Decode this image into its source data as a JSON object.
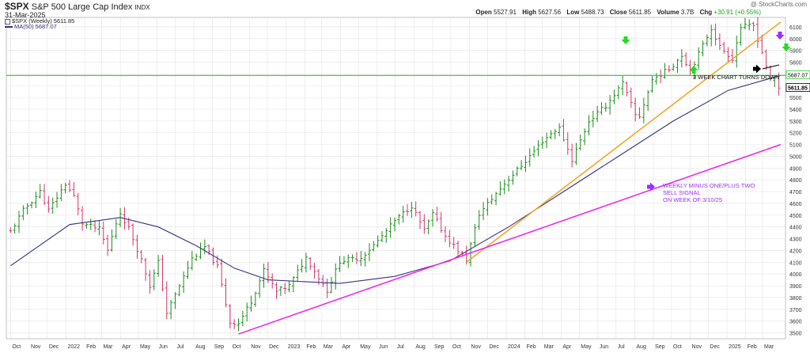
{
  "header": {
    "symbol": "$SPX",
    "name": "S&P 500 Large Cap Index",
    "exchange": "INDX",
    "date": "31-Mar-2025",
    "watermark": "@ StockCharts.com",
    "ohlc": {
      "open_label": "Open",
      "open": "5527.91",
      "high_label": "High",
      "high": "5627.56",
      "low_label": "Low",
      "low": "5488.73",
      "close_label": "Close",
      "close": "5611.85",
      "volume_label": "Volume",
      "volume": "3.7B",
      "chg_label": "Chg",
      "chg": "+30.91 (+0.55%)"
    },
    "legend_price": "$SPX (Weekly) 5611.85",
    "legend_ma": "MA(50) 5687.07"
  },
  "annotations": {
    "turns_down": "3 WEEK CHART TURNS DOWN",
    "sell_signal_lines": [
      "WEEKLY MINUS ONE/PLUS TWO",
      "SELL SIGNAL",
      "ON WEEK OF 3/10/25"
    ]
  },
  "colors": {
    "up_bar": "#1a8c1a",
    "down_bar": "#d6336c",
    "ma_line": "#333380",
    "horizontal_line": "#22cc22",
    "orange_trendline": "#f5a020",
    "magenta_trendline": "#ee22ee",
    "green_arrow": "#22dd22",
    "purple_arrow": "#9b30ff",
    "black_arrow": "#000000",
    "grid": "#e4e4e4"
  },
  "chart_data": {
    "type": "ohlc",
    "period": "weekly",
    "x_tick_labels": [
      "Oct",
      "Nov",
      "Dec",
      "2022",
      "Feb",
      "Mar",
      "Apr",
      "May",
      "Jun",
      "Jul",
      "Aug",
      "Sep",
      "Oct",
      "Nov",
      "Dec",
      "2023",
      "Feb",
      "Mar",
      "Apr",
      "May",
      "Jun",
      "Jul",
      "Aug",
      "Sep",
      "Oct",
      "Nov",
      "Dec",
      "2024",
      "Feb",
      "Mar",
      "Apr",
      "May",
      "Jun",
      "Jul",
      "Aug",
      "Sep",
      "Oct",
      "Nov",
      "Dec",
      "2025",
      "Feb",
      "Mar"
    ],
    "y_ticks": [
      3500,
      3600,
      3700,
      3800,
      3900,
      4000,
      4100,
      4200,
      4300,
      4400,
      4500,
      4600,
      4700,
      4800,
      4900,
      5000,
      5100,
      5200,
      5300,
      5400,
      5500,
      5600,
      5700,
      5800,
      5900,
      6000,
      6100
    ],
    "y_axis_tags": [
      "5687.07",
      "5611.85"
    ],
    "ylim": [
      3450,
      6180
    ],
    "grid": true,
    "axis_position": "right",
    "close_path": [
      [
        "2021-10-01",
        4360
      ],
      [
        "2021-10-22",
        4540
      ],
      [
        "2021-11-19",
        4700
      ],
      [
        "2021-12-03",
        4540
      ],
      [
        "2021-12-31",
        4766
      ],
      [
        "2022-01-14",
        4660
      ],
      [
        "2022-01-28",
        4430
      ],
      [
        "2022-02-25",
        4380
      ],
      [
        "2022-03-11",
        4200
      ],
      [
        "2022-03-31",
        4530
      ],
      [
        "2022-04-15",
        4390
      ],
      [
        "2022-05-06",
        4120
      ],
      [
        "2022-05-20",
        3900
      ],
      [
        "2022-06-03",
        4100
      ],
      [
        "2022-06-17",
        3670
      ],
      [
        "2022-07-08",
        3900
      ],
      [
        "2022-07-29",
        4130
      ],
      [
        "2022-08-19",
        4230
      ],
      [
        "2022-09-09",
        4060
      ],
      [
        "2022-09-30",
        3590
      ],
      [
        "2022-10-14",
        3580
      ],
      [
        "2022-11-04",
        3770
      ],
      [
        "2022-11-25",
        4030
      ],
      [
        "2022-12-16",
        3850
      ],
      [
        "2023-01-06",
        3900
      ],
      [
        "2023-02-03",
        4140
      ],
      [
        "2023-02-24",
        3970
      ],
      [
        "2023-03-10",
        3860
      ],
      [
        "2023-03-31",
        4110
      ],
      [
        "2023-05-05",
        4140
      ],
      [
        "2023-06-02",
        4280
      ],
      [
        "2023-06-30",
        4450
      ],
      [
        "2023-07-28",
        4580
      ],
      [
        "2023-08-18",
        4370
      ],
      [
        "2023-09-01",
        4510
      ],
      [
        "2023-09-22",
        4320
      ],
      [
        "2023-10-27",
        4120
      ],
      [
        "2023-11-17",
        4510
      ],
      [
        "2023-12-29",
        4770
      ],
      [
        "2024-02-02",
        4960
      ],
      [
        "2024-03-01",
        5130
      ],
      [
        "2024-03-28",
        5250
      ],
      [
        "2024-04-19",
        4970
      ],
      [
        "2024-05-17",
        5300
      ],
      [
        "2024-06-14",
        5430
      ],
      [
        "2024-07-12",
        5620
      ],
      [
        "2024-08-02",
        5350
      ],
      [
        "2024-08-09",
        5340
      ],
      [
        "2024-08-30",
        5650
      ],
      [
        "2024-09-27",
        5740
      ],
      [
        "2024-10-18",
        5860
      ],
      [
        "2024-11-01",
        5730
      ],
      [
        "2024-11-15",
        5870
      ],
      [
        "2024-12-06",
        6090
      ],
      [
        "2024-12-20",
        5930
      ],
      [
        "2025-01-10",
        5830
      ],
      [
        "2025-01-24",
        6100
      ],
      [
        "2025-02-14",
        6110
      ],
      [
        "2025-03-07",
        5770
      ],
      [
        "2025-03-14",
        5640
      ],
      [
        "2025-03-21",
        5670
      ],
      [
        "2025-03-28",
        5580
      ],
      [
        "2025-03-31",
        5611.85
      ]
    ],
    "series": [
      {
        "name": "$SPX (Weekly)",
        "last": 5611.85
      },
      {
        "name": "MA(50)",
        "last": 5687.07,
        "points": [
          [
            "2021-10-01",
            4070
          ],
          [
            "2022-01-07",
            4420
          ],
          [
            "2022-04-01",
            4480
          ],
          [
            "2022-06-03",
            4400
          ],
          [
            "2022-08-05",
            4240
          ],
          [
            "2022-10-07",
            4050
          ],
          [
            "2022-12-02",
            3950
          ],
          [
            "2023-03-31",
            3920
          ],
          [
            "2023-06-30",
            3980
          ],
          [
            "2023-09-29",
            4110
          ],
          [
            "2024-01-05",
            4400
          ],
          [
            "2024-04-05",
            4700
          ],
          [
            "2024-07-05",
            5000
          ],
          [
            "2024-10-04",
            5300
          ],
          [
            "2025-01-03",
            5560
          ],
          [
            "2025-03-31",
            5687.07
          ]
        ]
      }
    ],
    "lines": [
      {
        "kind": "horizontal",
        "value": 5687.07
      },
      {
        "kind": "trendline-orange",
        "from": [
          "2023-10-27",
          4100
        ],
        "to": [
          "2025-03-31",
          6140
        ]
      },
      {
        "kind": "trendline-magenta",
        "from": [
          "2022-10-14",
          3490
        ],
        "to": [
          "2025-03-31",
          5100
        ]
      }
    ]
  }
}
